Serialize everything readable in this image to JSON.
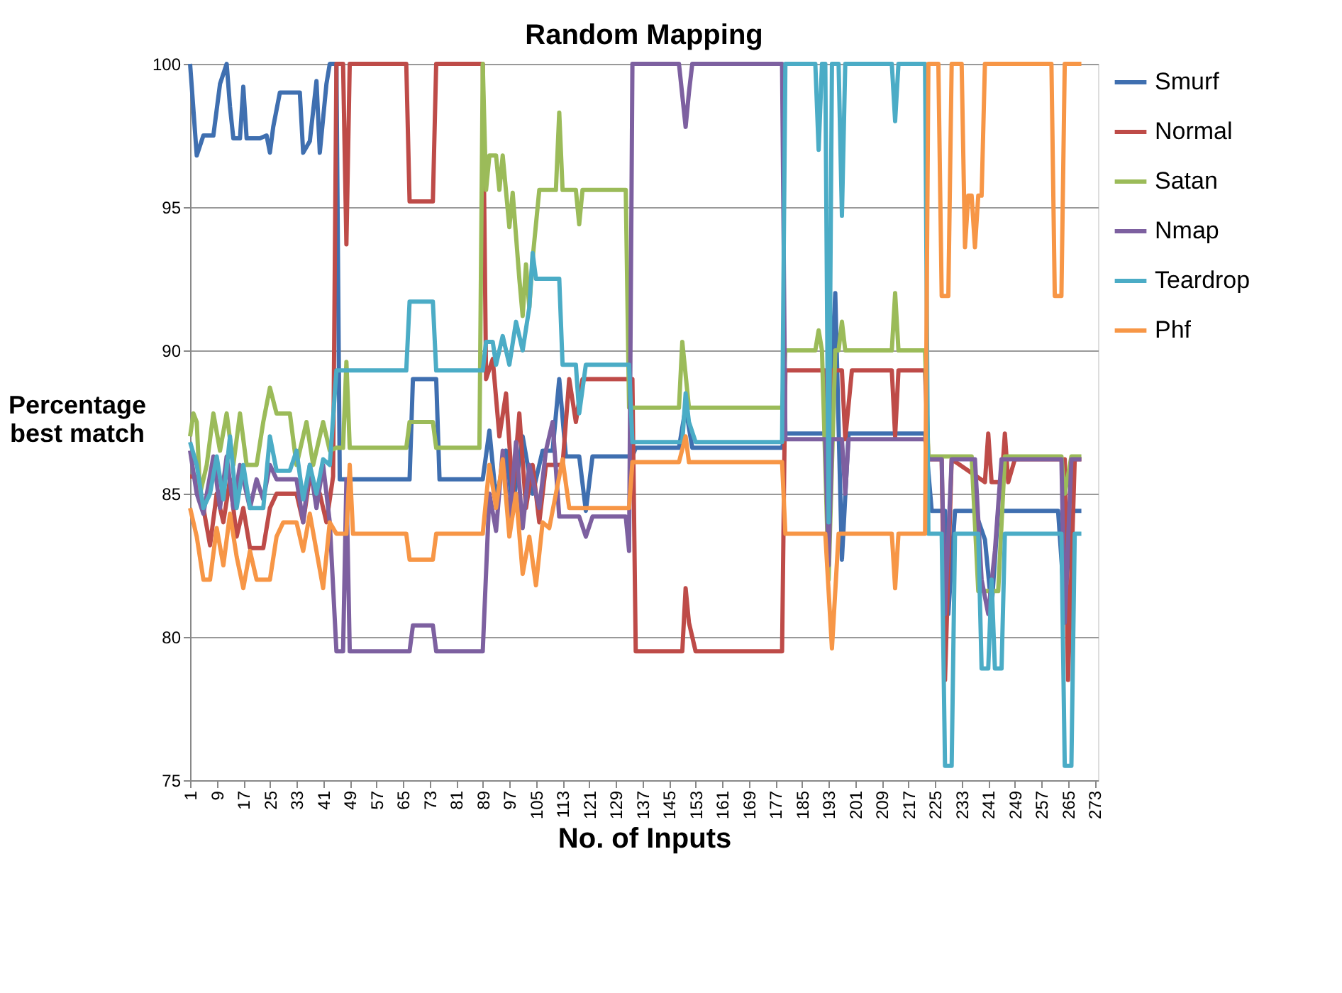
{
  "chart_data": {
    "type": "line",
    "title": "Random Mapping",
    "xlabel": "No. of Inputs",
    "ylabel": "Percentage best match",
    "xlim": [
      1,
      274
    ],
    "xticks": [
      1,
      9,
      17,
      25,
      33,
      41,
      49,
      57,
      65,
      73,
      81,
      89,
      97,
      105,
      113,
      121,
      129,
      137,
      145,
      153,
      161,
      169,
      177,
      185,
      193,
      201,
      209,
      217,
      225,
      233,
      241,
      249,
      257,
      265,
      273
    ],
    "ylim": [
      75,
      100
    ],
    "yticks": [
      75,
      80,
      85,
      90,
      95,
      100
    ],
    "grid": "y",
    "legend": "right",
    "marker": "none",
    "line_style": "solid",
    "series": [
      {
        "name": "Smurf",
        "color": "#3f6fb0",
        "x": [
          1,
          3,
          5,
          8,
          10,
          12,
          13,
          14,
          16,
          17,
          18,
          22,
          24,
          25,
          26,
          28,
          34,
          35,
          37,
          39,
          40,
          42,
          43,
          45,
          46,
          67,
          68,
          75,
          76,
          89,
          91,
          93,
          96,
          98,
          101,
          104,
          107,
          110,
          112,
          114,
          118,
          120,
          122,
          134,
          135,
          148,
          150,
          152,
          179,
          180,
          193,
          195,
          197,
          199,
          222,
          224,
          228,
          229,
          231,
          237,
          240,
          242,
          244,
          262,
          264,
          266,
          269
        ],
        "values": [
          100,
          96.8,
          97.5,
          97.5,
          99.3,
          100,
          98.5,
          97.4,
          97.4,
          99.2,
          97.4,
          97.4,
          97.5,
          96.9,
          97.8,
          99,
          99,
          96.9,
          97.3,
          99.4,
          96.9,
          99.3,
          100,
          100,
          85.5,
          85.5,
          89,
          89,
          85.5,
          85.5,
          87.2,
          84.8,
          86.5,
          84.5,
          87,
          85,
          86.5,
          86.5,
          89,
          86.3,
          86.3,
          84.4,
          86.3,
          86.3,
          86.6,
          86.6,
          88,
          86.6,
          86.6,
          87.1,
          87.1,
          92,
          82.7,
          87.1,
          87.1,
          84.4,
          84.4,
          80.8,
          84.4,
          84.4,
          83.4,
          81,
          84.4,
          84.4,
          81,
          84.4,
          84.4
        ]
      },
      {
        "name": "Normal",
        "color": "#be4b48",
        "x": [
          1,
          3,
          5,
          7,
          9,
          11,
          13,
          15,
          17,
          19,
          23,
          25,
          27,
          33,
          35,
          37,
          40,
          42,
          44,
          45,
          47,
          48,
          49,
          66,
          67,
          74,
          75,
          89,
          90,
          92,
          94,
          96,
          98,
          100,
          102,
          104,
          106,
          108,
          113,
          115,
          117,
          119,
          134,
          135,
          149,
          150,
          151,
          153,
          179,
          180,
          192,
          193,
          194,
          197,
          198,
          200,
          212,
          213,
          214,
          222,
          223,
          227,
          228,
          230,
          240,
          241,
          242,
          245,
          246,
          247,
          249,
          264,
          265,
          267,
          269
        ],
        "values": [
          85.6,
          85.6,
          84.5,
          83.2,
          85,
          84,
          85.5,
          83.5,
          84.5,
          83.1,
          83.1,
          84.5,
          85,
          85,
          84,
          85.6,
          85,
          84,
          85.6,
          100,
          100,
          93.7,
          100,
          100,
          95.2,
          95.2,
          100,
          100,
          89,
          89.7,
          87,
          88.5,
          85,
          87.8,
          84.5,
          86,
          84,
          86,
          86,
          89,
          87.5,
          89,
          89,
          79.5,
          79.5,
          81.7,
          80.5,
          79.5,
          79.5,
          89.3,
          89.3,
          87,
          89.3,
          89.3,
          86.9,
          89.3,
          89.3,
          87,
          89.3,
          89.3,
          86.2,
          86.2,
          78.5,
          86.2,
          85.4,
          87.1,
          85.4,
          85.4,
          87.1,
          85.4,
          86.2,
          86.2,
          78.5,
          86.2,
          86.2
        ]
      },
      {
        "name": "Satan",
        "color": "#9bbb59",
        "x": [
          1,
          2,
          3,
          4,
          6,
          8,
          10,
          12,
          14,
          16,
          18,
          21,
          23,
          25,
          27,
          31,
          33,
          36,
          38,
          41,
          43,
          45,
          47,
          48,
          49,
          66,
          67,
          74,
          75,
          88,
          89,
          90,
          91,
          93,
          94,
          95,
          97,
          98,
          100,
          101,
          102,
          103,
          104,
          106,
          111,
          112,
          113,
          117,
          118,
          119,
          132,
          133,
          148,
          149,
          151,
          179,
          180,
          189,
          190,
          191,
          193,
          195,
          196,
          197,
          198,
          212,
          213,
          214,
          222,
          223,
          236,
          238,
          244,
          246,
          263,
          264,
          266,
          269
        ],
        "values": [
          87,
          87.8,
          87.5,
          85,
          86,
          87.8,
          86.5,
          87.8,
          86,
          87.8,
          86,
          86,
          87.5,
          88.7,
          87.8,
          87.8,
          86,
          87.5,
          86,
          87.5,
          86.5,
          86.6,
          86.6,
          89.6,
          86.6,
          86.6,
          87.5,
          87.5,
          86.6,
          86.6,
          100,
          95.6,
          96.8,
          96.8,
          95.6,
          96.8,
          94.3,
          95.5,
          92.5,
          91.2,
          93,
          91.5,
          93.2,
          95.6,
          95.6,
          98.3,
          95.6,
          95.6,
          94.4,
          95.6,
          95.6,
          88,
          88,
          90.3,
          88,
          88,
          90,
          90,
          90.7,
          90,
          82,
          90,
          90,
          91,
          90,
          90,
          92,
          90,
          90,
          86.3,
          86.3,
          81.6,
          81.6,
          86.3,
          86.3,
          85,
          86.3,
          86.3
        ]
      },
      {
        "name": "Nmap",
        "color": "#7d60a0",
        "x": [
          1,
          3,
          5,
          8,
          10,
          12,
          14,
          16,
          19,
          21,
          23,
          25,
          27,
          33,
          35,
          37,
          39,
          41,
          43,
          45,
          47,
          48,
          49,
          67,
          68,
          74,
          75,
          89,
          91,
          93,
          95,
          97,
          99,
          101,
          103,
          106,
          108,
          110,
          112,
          118,
          120,
          122,
          132,
          133,
          134,
          148,
          150,
          151,
          152,
          179,
          180,
          192,
          193,
          194,
          197,
          198,
          199,
          222,
          223,
          227,
          228,
          230,
          237,
          239,
          241,
          243,
          245,
          263,
          264,
          266,
          269
        ],
        "values": [
          86.5,
          85,
          84.3,
          86.3,
          84.5,
          86.3,
          84.5,
          86,
          84.5,
          85.5,
          84.8,
          86,
          85.5,
          85.5,
          84,
          86,
          84.5,
          86,
          84,
          79.5,
          79.5,
          85.5,
          79.5,
          79.5,
          80.4,
          80.4,
          79.5,
          79.5,
          85,
          83.7,
          86.5,
          84,
          86.8,
          83.8,
          86,
          84.5,
          86.5,
          87.5,
          84.2,
          84.2,
          83.5,
          84.2,
          84.2,
          83,
          100,
          100,
          97.8,
          99,
          100,
          100,
          86.9,
          86.9,
          82.5,
          86.9,
          86.9,
          85,
          86.9,
          86.9,
          86.2,
          86.2,
          80.8,
          86.2,
          86.2,
          82,
          80.8,
          83,
          86.2,
          86.2,
          80.5,
          86.2,
          86.2
        ]
      },
      {
        "name": "Teardrop",
        "color": "#4bacc6",
        "x": [
          1,
          3,
          5,
          7,
          9,
          11,
          13,
          15,
          17,
          19,
          23,
          25,
          27,
          31,
          33,
          35,
          37,
          39,
          41,
          43,
          45,
          66,
          67,
          74,
          75,
          89,
          90,
          92,
          93,
          95,
          97,
          99,
          101,
          103,
          104,
          105,
          112,
          113,
          117,
          118,
          120,
          133,
          134,
          149,
          150,
          151,
          153,
          179,
          180,
          189,
          190,
          191,
          192,
          193,
          194,
          196,
          197,
          198,
          212,
          213,
          214,
          222,
          223,
          227,
          228,
          230,
          231,
          238,
          239,
          241,
          242,
          243,
          245,
          246,
          263,
          264,
          266,
          267,
          269
        ],
        "values": [
          86.8,
          86,
          84.5,
          85,
          86.3,
          84.8,
          87,
          84.5,
          86,
          84.5,
          84.5,
          87,
          85.8,
          85.8,
          86.5,
          84.8,
          86,
          85,
          86.2,
          86,
          89.3,
          89.3,
          91.7,
          91.7,
          89.3,
          89.3,
          90.3,
          90.3,
          89.5,
          90.5,
          89.5,
          91,
          90,
          91.5,
          93.4,
          92.5,
          92.5,
          89.5,
          89.5,
          87.8,
          89.5,
          89.5,
          86.8,
          86.8,
          88.5,
          87.5,
          86.8,
          86.8,
          100,
          100,
          97,
          100,
          100,
          84,
          100,
          100,
          94.7,
          100,
          100,
          98,
          100,
          100,
          83.6,
          83.6,
          75.5,
          75.5,
          83.6,
          83.6,
          78.9,
          78.9,
          82,
          78.9,
          78.9,
          83.6,
          83.6,
          75.5,
          75.5,
          83.6,
          83.6
        ]
      },
      {
        "name": "Phf",
        "color": "#f79646",
        "x": [
          1,
          3,
          5,
          7,
          9,
          11,
          13,
          15,
          17,
          19,
          21,
          25,
          27,
          29,
          33,
          35,
          37,
          39,
          41,
          43,
          45,
          48,
          49,
          50,
          66,
          67,
          74,
          75,
          89,
          91,
          93,
          95,
          97,
          99,
          101,
          103,
          105,
          107,
          109,
          111,
          113,
          115,
          133,
          134,
          148,
          150,
          151,
          179,
          180,
          192,
          194,
          196,
          212,
          213,
          214,
          222,
          223,
          226,
          227,
          229,
          230,
          233,
          234,
          235,
          236,
          237,
          238,
          239,
          240,
          260,
          261,
          263,
          264,
          269
        ],
        "values": [
          84.5,
          83.5,
          82,
          82,
          83.8,
          82.5,
          84.3,
          82.8,
          81.7,
          83,
          82,
          82,
          83.5,
          84,
          84,
          83,
          84.3,
          83,
          81.7,
          84,
          83.6,
          83.6,
          86,
          83.6,
          83.6,
          82.7,
          82.7,
          83.6,
          83.6,
          86,
          84.5,
          86.2,
          83.5,
          85,
          82.2,
          83.5,
          81.8,
          84,
          83.8,
          85,
          86.2,
          84.5,
          84.5,
          86.1,
          86.1,
          87,
          86.1,
          86.1,
          83.6,
          83.6,
          79.6,
          83.6,
          83.6,
          81.7,
          83.6,
          83.6,
          100,
          100,
          91.9,
          91.9,
          100,
          100,
          93.6,
          95.4,
          95.4,
          93.6,
          95.4,
          95.4,
          100,
          100,
          91.9,
          91.9,
          100,
          100
        ]
      }
    ]
  }
}
